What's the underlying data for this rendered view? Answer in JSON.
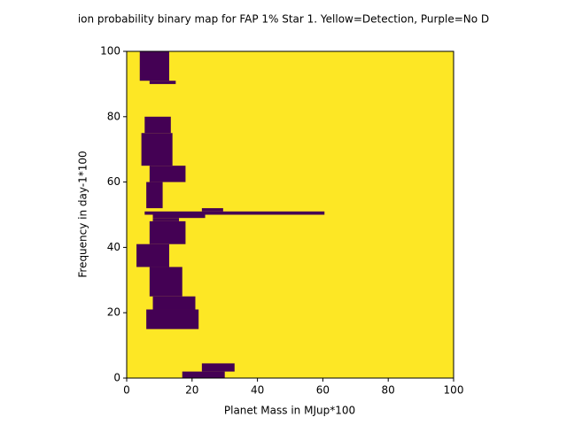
{
  "chart_data": {
    "type": "heatmap",
    "title": "ion probability binary map for FAP 1% Star 1. Yellow=Detection, Purple=No D",
    "xlabel": "Planet Mass in MJup*100",
    "ylabel": "Frequency in day-1*100",
    "xlim": [
      0,
      100
    ],
    "ylim": [
      0,
      100
    ],
    "xticks": [
      0,
      20,
      40,
      60,
      80,
      100
    ],
    "yticks": [
      0,
      20,
      40,
      60,
      80,
      100
    ],
    "background_color": "#fde725",
    "region_color": "#440154",
    "regions": [
      {
        "x": [
          4,
          13
        ],
        "y": [
          91,
          100
        ]
      },
      {
        "x": [
          7,
          15
        ],
        "y": [
          90,
          91
        ]
      },
      {
        "x": [
          5.5,
          13.5
        ],
        "y": [
          75,
          80
        ]
      },
      {
        "x": [
          4.5,
          14
        ],
        "y": [
          65,
          75
        ]
      },
      {
        "x": [
          7,
          18
        ],
        "y": [
          60,
          65
        ]
      },
      {
        "x": [
          6,
          11
        ],
        "y": [
          52,
          60
        ]
      },
      {
        "x": [
          23,
          29.5
        ],
        "y": [
          51,
          52
        ]
      },
      {
        "x": [
          5.5,
          60.5
        ],
        "y": [
          50,
          51
        ]
      },
      {
        "x": [
          8,
          24
        ],
        "y": [
          49,
          50
        ]
      },
      {
        "x": [
          8,
          16
        ],
        "y": [
          48,
          49
        ]
      },
      {
        "x": [
          7,
          18
        ],
        "y": [
          41,
          48
        ]
      },
      {
        "x": [
          3,
          13
        ],
        "y": [
          34,
          41
        ]
      },
      {
        "x": [
          7,
          17
        ],
        "y": [
          25,
          34
        ]
      },
      {
        "x": [
          8,
          21
        ],
        "y": [
          21,
          25
        ]
      },
      {
        "x": [
          6,
          22
        ],
        "y": [
          15,
          21
        ]
      },
      {
        "x": [
          23,
          33
        ],
        "y": [
          2,
          4.5
        ]
      },
      {
        "x": [
          17,
          30
        ],
        "y": [
          0,
          2
        ]
      }
    ]
  }
}
